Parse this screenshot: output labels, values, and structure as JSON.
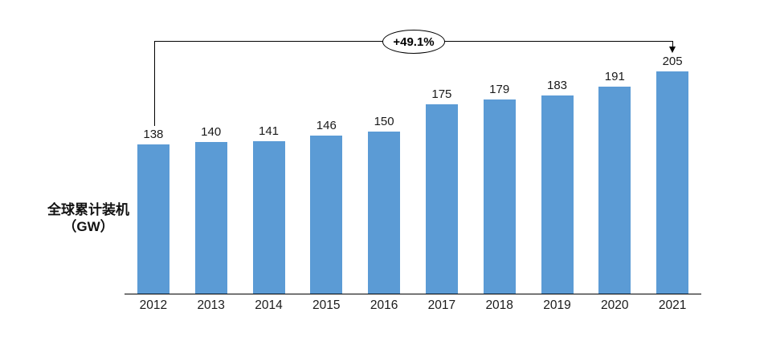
{
  "chart_data": {
    "type": "bar",
    "title": "",
    "categories": [
      "2012",
      "2013",
      "2014",
      "2015",
      "2016",
      "2017",
      "2018",
      "2019",
      "2020",
      "2021"
    ],
    "values": [
      138,
      140,
      141,
      146,
      150,
      175,
      179,
      183,
      191,
      205
    ],
    "ylabel": "全球累计装机（GW）",
    "ylabel_lines": [
      "全球累计装机",
      "（GW）"
    ],
    "xlabel": "",
    "ylim": [
      0,
      220
    ],
    "grid": false,
    "legend": false,
    "data_labels": true,
    "bar_color": "#5B9BD5",
    "axis_color": "#000000",
    "label_color": "#1a1a1a",
    "annotation": {
      "label": "+49.1%",
      "from_category": "2012",
      "to_category": "2021",
      "shape": "ellipse-callout-with-bracket-arrow"
    }
  }
}
